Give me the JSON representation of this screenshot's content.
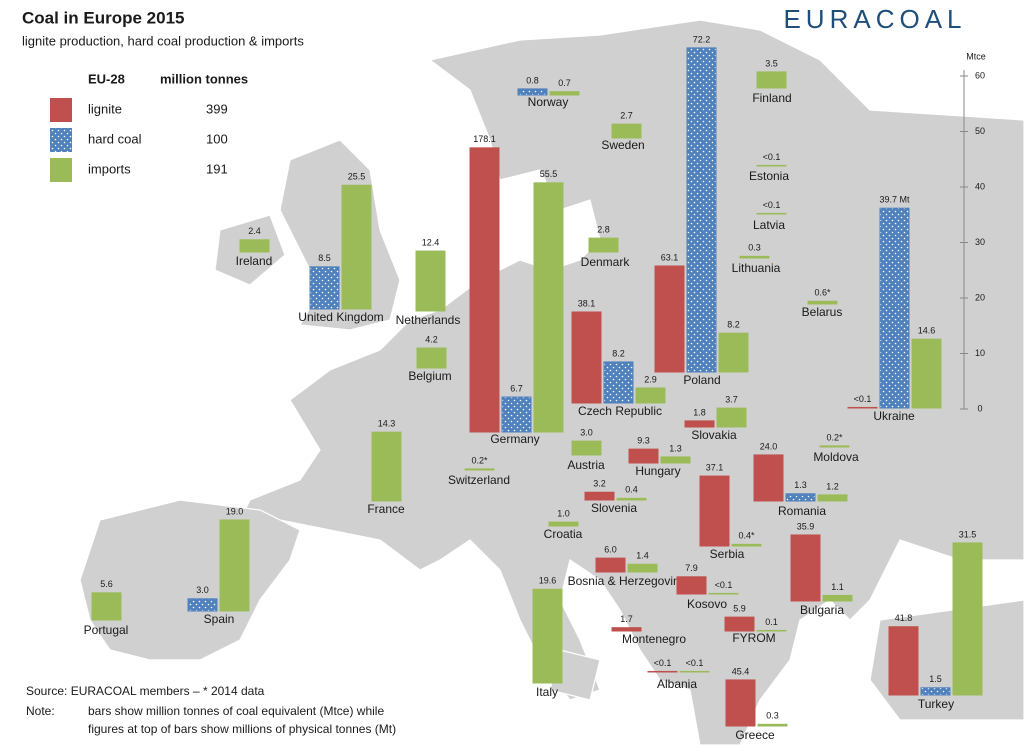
{
  "chart_data": {
    "type": "bar",
    "title": "Coal in Europe 2015",
    "subtitle": "lignite production, hard coal production & imports",
    "brand": "EURACOAL",
    "legend": {
      "header": "EU-28",
      "unit": "million tonnes",
      "totals": [
        399,
        100,
        191
      ]
    },
    "y_unit": "Mtce",
    "ylim": [
      0,
      60
    ],
    "yticks": [
      0,
      10,
      20,
      30,
      40,
      50,
      60
    ],
    "source": "Source: EURACOAL members  –  * 2014 data",
    "note_label": "Note:",
    "note": [
      "bars show million tonnes of coal equivalent (Mtce) while",
      "figures at top of bars show millions of physical tonnes (Mt)"
    ],
    "categories": [
      "Norway",
      "Finland",
      "Sweden",
      "Estonia",
      "Latvia",
      "Lithuania",
      "Denmark",
      "Belarus",
      "Ireland",
      "United Kingdom",
      "Netherlands",
      "Belgium",
      "Germany",
      "Poland",
      "Czech Republic",
      "Ukraine",
      "France",
      "Switzerland",
      "Austria",
      "Slovakia",
      "Hungary",
      "Slovenia",
      "Croatia",
      "Romania",
      "Moldova",
      "Serbia",
      "Bosnia & Herzegovina",
      "Kosovo",
      "Bulgaria",
      "Montenegro",
      "FYROM",
      "Albania",
      "Greece",
      "Italy",
      "Spain",
      "Portugal",
      "Turkey"
    ],
    "series": [
      {
        "name": "lignite",
        "color": "#c0504d",
        "values": [
          null,
          null,
          null,
          null,
          null,
          null,
          null,
          null,
          null,
          null,
          null,
          null,
          51.2,
          19.1,
          16.4,
          0.1,
          null,
          null,
          null,
          1.1,
          2.5,
          1.4,
          null,
          8.3,
          null,
          12.6,
          2.5,
          3.1,
          11.9,
          0.6,
          2.5,
          0.1,
          8.3,
          null,
          null,
          null,
          12.3
        ],
        "mt_labels": [
          null,
          null,
          null,
          null,
          null,
          null,
          null,
          null,
          null,
          null,
          null,
          null,
          "178.1",
          "63.1",
          "38.1",
          "<0.1",
          null,
          null,
          null,
          "1.8",
          "9.3",
          "3.2",
          null,
          "24.0",
          null,
          "37.1",
          "6.0",
          "7.9",
          "35.9",
          "1.7",
          "5.9",
          "<0.1",
          "45.4",
          null,
          null,
          null,
          "41.8"
        ]
      },
      {
        "name": "hard coal",
        "color": "#4f81bd",
        "values": [
          1.1,
          null,
          null,
          null,
          null,
          null,
          null,
          null,
          null,
          7.6,
          null,
          null,
          6.3,
          58.4,
          7.4,
          36.0,
          null,
          null,
          null,
          null,
          null,
          null,
          null,
          1.3,
          null,
          null,
          null,
          null,
          null,
          null,
          null,
          null,
          null,
          null,
          2.2,
          null,
          1.3
        ],
        "mt_labels": [
          "0.8",
          null,
          null,
          null,
          null,
          null,
          null,
          null,
          null,
          "8.5",
          null,
          null,
          "6.7",
          "72.2",
          "8.2",
          "39.7 Mt",
          null,
          null,
          null,
          null,
          null,
          null,
          null,
          "1.3",
          null,
          null,
          null,
          null,
          null,
          null,
          null,
          null,
          null,
          null,
          "3.0",
          null,
          "1.5"
        ]
      },
      {
        "name": "imports",
        "color": "#9bbb59",
        "values": [
          0.6,
          2.9,
          2.5,
          0.1,
          0.1,
          0.3,
          2.5,
          0.5,
          2.2,
          22.3,
          10.8,
          3.6,
          44.9,
          7.0,
          2.7,
          12.4,
          12.4,
          0.2,
          2.5,
          3.4,
          1.1,
          0.3,
          0.7,
          1.1,
          0.2,
          0.3,
          1.4,
          0.1,
          1.0,
          null,
          0.1,
          0.1,
          0.3,
          16.9,
          16.4,
          4.9,
          27.4
        ],
        "mt_labels": [
          "0.7",
          "3.5",
          "2.7",
          "<0.1",
          "<0.1",
          "0.3",
          "2.8",
          "0.6*",
          "2.4",
          "25.5",
          "12.4",
          "4.2",
          "55.5",
          "8.2",
          "2.9",
          "14.6",
          "14.3",
          "0.2*",
          "3.0",
          "3.7",
          "1.3",
          "0.4",
          "1.0",
          "1.2",
          "0.2*",
          "0.4*",
          "1.4",
          "<0.1",
          "1.1",
          null,
          "0.1",
          "<0.1",
          "0.3",
          "19.6",
          "19.0",
          "5.6",
          "31.5"
        ]
      }
    ]
  }
}
